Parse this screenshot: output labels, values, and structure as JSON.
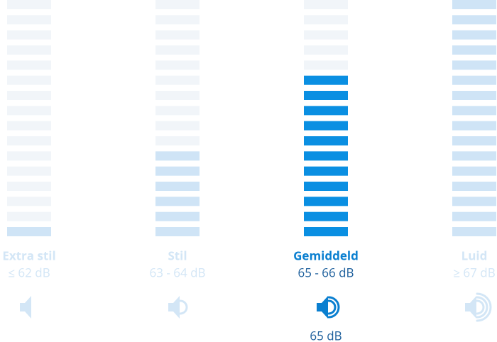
{
  "levels": [
    {
      "label": "Extra stil",
      "range": "≤ 62 dB",
      "filled_bars": 1
    },
    {
      "label": "Stil",
      "range": "63 - 64 dB",
      "filled_bars": 6
    },
    {
      "label": "Gemiddeld",
      "range": "65 - 66 dB",
      "filled_bars": 11
    },
    {
      "label": "Luid",
      "range": "≥ 67 dB",
      "filled_bars": 16
    }
  ],
  "total_bars": 16,
  "active_level": 2,
  "current_reading": "65 dB"
}
